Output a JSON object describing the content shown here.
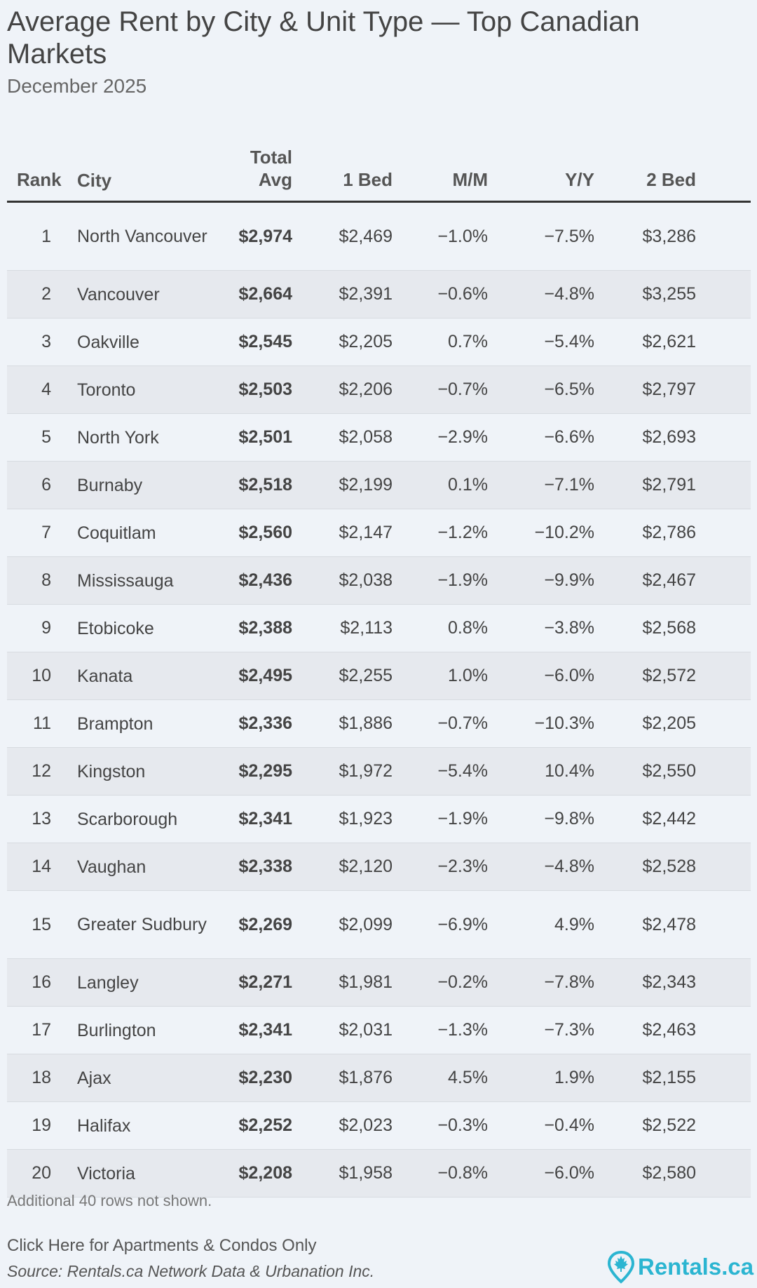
{
  "chart_data": {
    "type": "table",
    "title": "Average Rent by City & Unit Type — Top Canadian Markets",
    "subtitle": "December 2025",
    "columns": [
      "Rank",
      "City",
      "Total Avg",
      "1 Bed",
      "M/M",
      "Y/Y",
      "2 Bed"
    ],
    "rows": [
      [
        "1",
        "North Vancouver",
        "$2,974",
        "$2,469",
        "−1.0%",
        "−7.5%",
        "$3,286"
      ],
      [
        "2",
        "Vancouver",
        "$2,664",
        "$2,391",
        "−0.6%",
        "−4.8%",
        "$3,255"
      ],
      [
        "3",
        "Oakville",
        "$2,545",
        "$2,205",
        "0.7%",
        "−5.4%",
        "$2,621"
      ],
      [
        "4",
        "Toronto",
        "$2,503",
        "$2,206",
        "−0.7%",
        "−6.5%",
        "$2,797"
      ],
      [
        "5",
        "North York",
        "$2,501",
        "$2,058",
        "−2.9%",
        "−6.6%",
        "$2,693"
      ],
      [
        "6",
        "Burnaby",
        "$2,518",
        "$2,199",
        "0.1%",
        "−7.1%",
        "$2,791"
      ],
      [
        "7",
        "Coquitlam",
        "$2,560",
        "$2,147",
        "−1.2%",
        "−10.2%",
        "$2,786"
      ],
      [
        "8",
        "Mississauga",
        "$2,436",
        "$2,038",
        "−1.9%",
        "−9.9%",
        "$2,467"
      ],
      [
        "9",
        "Etobicoke",
        "$2,388",
        "$2,113",
        "0.8%",
        "−3.8%",
        "$2,568"
      ],
      [
        "10",
        "Kanata",
        "$2,495",
        "$2,255",
        "1.0%",
        "−6.0%",
        "$2,572"
      ],
      [
        "11",
        "Brampton",
        "$2,336",
        "$1,886",
        "−0.7%",
        "−10.3%",
        "$2,205"
      ],
      [
        "12",
        "Kingston",
        "$2,295",
        "$1,972",
        "−5.4%",
        "10.4%",
        "$2,550"
      ],
      [
        "13",
        "Scarborough",
        "$2,341",
        "$1,923",
        "−1.9%",
        "−9.8%",
        "$2,442"
      ],
      [
        "14",
        "Vaughan",
        "$2,338",
        "$2,120",
        "−2.3%",
        "−4.8%",
        "$2,528"
      ],
      [
        "15",
        "Greater Sudbury",
        "$2,269",
        "$2,099",
        "−6.9%",
        "4.9%",
        "$2,478"
      ],
      [
        "16",
        "Langley",
        "$2,271",
        "$1,981",
        "−0.2%",
        "−7.8%",
        "$2,343"
      ],
      [
        "17",
        "Burlington",
        "$2,341",
        "$2,031",
        "−1.3%",
        "−7.3%",
        "$2,463"
      ],
      [
        "18",
        "Ajax",
        "$2,230",
        "$1,876",
        "4.5%",
        "1.9%",
        "$2,155"
      ],
      [
        "19",
        "Halifax",
        "$2,252",
        "$2,023",
        "−0.3%",
        "−0.4%",
        "$2,522"
      ],
      [
        "20",
        "Victoria",
        "$2,208",
        "$1,958",
        "−0.8%",
        "−6.0%",
        "$2,580"
      ]
    ]
  },
  "footer": {
    "note": "Additional 40 rows not shown.",
    "link": "Click Here for Apartments & Condos Only",
    "source": "Source: Rentals.ca Network Data & Urbanation Inc.",
    "logo_text": "Rentals.ca",
    "logo_icon": "map-pin-maple-leaf-icon",
    "brand_color": "#2bb5d1"
  }
}
